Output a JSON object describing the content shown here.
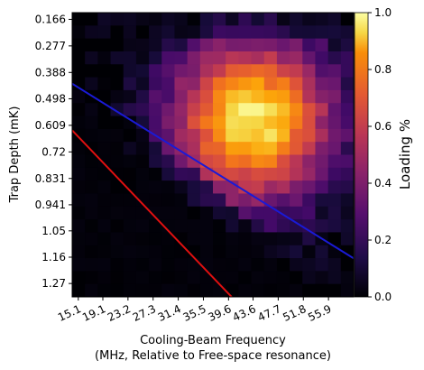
{
  "chart_data": {
    "type": "heatmap",
    "title": "",
    "xlabel_line1": "Cooling-Beam Frequency",
    "xlabel_line2": "(MHz, Relative to Free-space resonance)",
    "ylabel": "Trap Depth (mK)",
    "colorbar_label": "Loading %",
    "colormap": "inferno",
    "x_tick_labels": [
      "15.1",
      "19.1",
      "23.2",
      "27.3",
      "31.4",
      "35.5",
      "39.6",
      "43.6",
      "47.7",
      "51.8",
      "55.9"
    ],
    "y_tick_labels": [
      "0.166",
      "0.277",
      "0.388",
      "0.498",
      "0.609",
      "0.72",
      "0.831",
      "0.941",
      "1.05",
      "1.16",
      "1.27"
    ],
    "x_range": [
      14.1,
      60.0
    ],
    "y_range": [
      0.138,
      1.326
    ],
    "n_cols": 22,
    "n_rows": 22,
    "colorbar_ticks": [
      "0.0",
      "0.2",
      "0.4",
      "0.6",
      "0.8",
      "1.0"
    ],
    "color_range": [
      0.0,
      1.0
    ],
    "lines": [
      {
        "color": "#1a1ad6",
        "x": [
          14.1,
          60.0
        ],
        "y": [
          0.435,
          1.165
        ]
      },
      {
        "color": "#e01010",
        "x": [
          14.1,
          40.1
        ],
        "y": [
          0.63,
          1.326
        ]
      }
    ]
  }
}
